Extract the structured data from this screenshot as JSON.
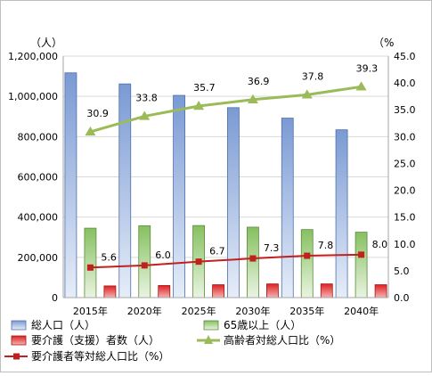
{
  "chart_data": {
    "type": "bar",
    "categories": [
      "2015年",
      "2020年",
      "2025年",
      "2030年",
      "2035年",
      "2040年"
    ],
    "y_left_unit": "（人）",
    "y_right_unit": "（%",
    "y_left_lim": [
      0,
      1200000
    ],
    "y_left_ticks": [
      "0",
      "200,000",
      "400,000",
      "600,000",
      "800,000",
      "1,000,000",
      "1,200,000"
    ],
    "y_right_lim": [
      0,
      45
    ],
    "y_right_ticks": [
      "0.0",
      "5.0",
      "10.0",
      "15.0",
      "20.0",
      "25.0",
      "30.0",
      "35.0",
      "40.0",
      "45.0"
    ],
    "grid": true,
    "legend_position": "bottom",
    "series": [
      {
        "name": "総人口（人）",
        "kind": "bar",
        "axis": "left",
        "color": "#7f9fd6",
        "values": [
          1117000,
          1062000,
          1005000,
          944000,
          892000,
          834000
        ]
      },
      {
        "name": "65歳以上（人）",
        "kind": "bar",
        "axis": "left",
        "color": "#8fc46a",
        "values": [
          345000,
          357000,
          358000,
          350000,
          338000,
          325000
        ]
      },
      {
        "name": "要介護（支援）者数（人）",
        "kind": "bar",
        "axis": "left",
        "color": "#e03030",
        "values": [
          58000,
          60000,
          64000,
          68000,
          68000,
          64000
        ]
      },
      {
        "name": "高齢者対総人口比（%）",
        "kind": "line",
        "axis": "right",
        "color": "#9bbb59",
        "marker": "triangle",
        "values": [
          30.9,
          33.8,
          35.7,
          36.9,
          37.8,
          39.3
        ],
        "labels": [
          "30.9",
          "33.8",
          "35.7",
          "36.9",
          "37.8",
          "39.3"
        ]
      },
      {
        "name": "要介護者等対総人口比（%）",
        "kind": "line",
        "axis": "right",
        "color": "#c0201e",
        "marker": "square",
        "values": [
          5.6,
          6.0,
          6.7,
          7.3,
          7.8,
          8.0
        ],
        "labels": [
          "5.6",
          "6.0",
          "6.7",
          "7.3",
          "7.8",
          "8.0"
        ]
      }
    ]
  }
}
